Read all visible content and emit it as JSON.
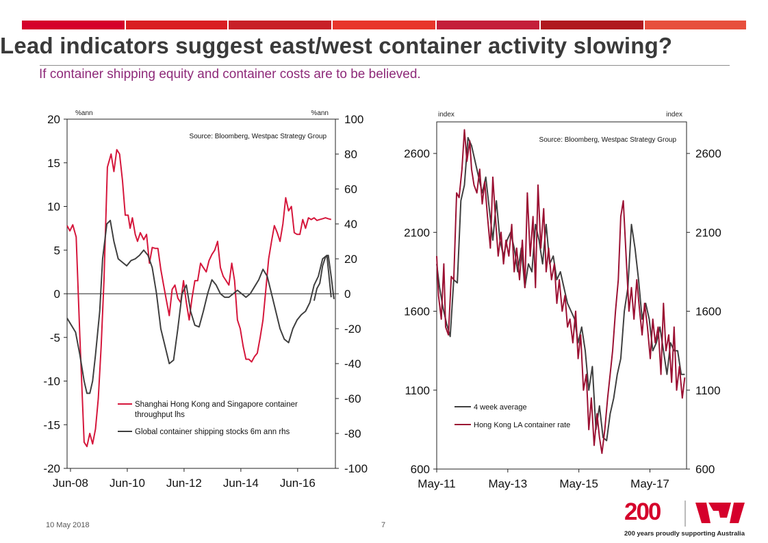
{
  "page": {
    "title": "Lead indicators suggest east/west container activity slowing?",
    "subtitle": "If container shipping equity and container costs are to be believed.",
    "footer_date": "10 May 2018",
    "footer_page": "7",
    "logo_number": "200",
    "logo_tagline": "200 years proudly supporting Australia",
    "colors": {
      "accent": "#d5002b",
      "subtitle": "#8e2a79",
      "dark_series": "#3f3f3f",
      "red_series": "#d5163b",
      "maroon_series": "#9b1133"
    },
    "topbar_colors": [
      "#d5002b",
      "#d91e22",
      "#c82027",
      "#e8352b",
      "#c41e3a",
      "#b0191e",
      "#e74f3d"
    ]
  },
  "chart_data": [
    {
      "type": "line",
      "source_note": "Source: Bloomberg, Westpac Strategy Group",
      "left_unit": "%ann",
      "right_unit": "%ann",
      "x_tick_labels": [
        "Jun-08",
        "Jun-10",
        "Jun-12",
        "Jun-14",
        "Jun-16"
      ],
      "x_tick_values": [
        2008.42,
        2010.42,
        2012.42,
        2014.42,
        2016.42
      ],
      "xlim": [
        2008.3,
        2017.75
      ],
      "ylim_left": [
        -20,
        20
      ],
      "y_ticks_left": [
        "20",
        "15",
        "10",
        "5",
        "0",
        "-5",
        "-10",
        "-15",
        "-20"
      ],
      "ylim_right": [
        -100,
        100
      ],
      "y_ticks_right": [
        "100",
        "80",
        "60",
        "40",
        "20",
        "0",
        "-20",
        "-40",
        "-60",
        "-80",
        "-100"
      ],
      "series": [
        {
          "name": "Shanghai Hong Kong and Singapore container throughput lhs",
          "name_line1": "Shanghai Hong Kong and Singapore container",
          "name_line2": "throughput lhs",
          "axis": "left",
          "color": "#d5163b",
          "x": [
            2008.3,
            2008.4,
            2008.5,
            2008.62,
            2008.75,
            2008.9,
            2009.0,
            2009.1,
            2009.2,
            2009.3,
            2009.4,
            2009.5,
            2009.6,
            2009.72,
            2009.85,
            2009.95,
            2010.05,
            2010.15,
            2010.25,
            2010.35,
            2010.45,
            2010.52,
            2010.6,
            2010.7,
            2010.78,
            2010.88,
            2011.0,
            2011.1,
            2011.2,
            2011.3,
            2011.4,
            2011.5,
            2011.6,
            2011.7,
            2011.8,
            2011.9,
            2012.0,
            2012.1,
            2012.2,
            2012.3,
            2012.4,
            2012.5,
            2012.6,
            2012.7,
            2012.8,
            2012.9,
            2013.0,
            2013.1,
            2013.2,
            2013.3,
            2013.4,
            2013.5,
            2013.6,
            2013.7,
            2013.8,
            2013.9,
            2014.0,
            2014.1,
            2014.2,
            2014.3,
            2014.4,
            2014.5,
            2014.6,
            2014.7,
            2014.8,
            2014.9,
            2015.0,
            2015.1,
            2015.2,
            2015.3,
            2015.4,
            2015.5,
            2015.6,
            2015.7,
            2015.8,
            2015.9,
            2016.0,
            2016.1,
            2016.2,
            2016.3,
            2016.4,
            2016.5,
            2016.6,
            2016.7,
            2016.8,
            2016.9,
            2017.0,
            2017.1,
            2017.2,
            2017.3,
            2017.4,
            2017.5,
            2017.6
          ],
          "values": [
            7.8,
            7.2,
            7.9,
            6.5,
            -5,
            -17,
            -17.5,
            -16,
            -17.2,
            -15.5,
            -12,
            -6,
            1.5,
            14.5,
            16,
            14,
            16.5,
            16,
            13,
            9,
            9,
            7.5,
            8.7,
            6.8,
            6,
            7,
            6.2,
            6.8,
            3.5,
            5.3,
            5.2,
            5.2,
            2.8,
            1,
            -0.8,
            -2.5,
            0.5,
            1,
            -0.5,
            -1,
            1.5,
            -1,
            -3,
            -0.5,
            1.5,
            1.5,
            3.5,
            3,
            2.5,
            3.8,
            4.5,
            5,
            6,
            3,
            2,
            1.5,
            1,
            3.5,
            1.5,
            -3,
            -4,
            -6,
            -7.5,
            -7.5,
            -7.8,
            -7.2,
            -6.8,
            -5,
            -3,
            0.5,
            4,
            6,
            7.8,
            7,
            6,
            8,
            11,
            9.5,
            10,
            7,
            6.8,
            6.8,
            8.5,
            7.5,
            8.7,
            8.5,
            8.7,
            8.4,
            8.5,
            8.6,
            8.7,
            8.6,
            8.5
          ]
        },
        {
          "name": "Global container shipping stocks 6m ann rhs",
          "axis": "right",
          "color": "#3f3f3f",
          "x": [
            2008.3,
            2008.45,
            2008.6,
            2008.75,
            2008.9,
            2009.0,
            2009.1,
            2009.2,
            2009.3,
            2009.45,
            2009.55,
            2009.7,
            2009.82,
            2009.95,
            2010.1,
            2010.25,
            2010.4,
            2010.55,
            2010.7,
            2010.85,
            2011.0,
            2011.15,
            2011.3,
            2011.45,
            2011.6,
            2011.75,
            2011.9,
            2012.05,
            2012.2,
            2012.35,
            2012.5,
            2012.65,
            2012.8,
            2012.95,
            2013.1,
            2013.25,
            2013.4,
            2013.55,
            2013.7,
            2013.85,
            2014.0,
            2014.15,
            2014.3,
            2014.45,
            2014.6,
            2014.75,
            2014.9,
            2015.05,
            2015.2,
            2015.35,
            2015.5,
            2015.65,
            2015.8,
            2015.95,
            2016.1,
            2016.25,
            2016.4,
            2016.55,
            2016.7,
            2016.85,
            2017.0,
            2017.15,
            2017.3,
            2017.45,
            2017.6
          ],
          "values": [
            -14,
            -18,
            -22,
            -35,
            -50,
            -57,
            -57,
            -50,
            -35,
            -10,
            20,
            40,
            42,
            30,
            20,
            18,
            16,
            19,
            20,
            22,
            25,
            22,
            15,
            0,
            -20,
            -30,
            -40,
            -38,
            -20,
            0,
            5,
            -10,
            -18,
            -19,
            -10,
            0,
            8,
            5,
            0,
            -2,
            -2,
            0,
            2,
            0,
            -2,
            0,
            4,
            8,
            14,
            10,
            0,
            -10,
            -20,
            -26,
            -28,
            -20,
            -15,
            -12,
            -10,
            -5,
            5,
            10,
            20,
            22,
            -2
          ]
        },
        {
          "name": "Global container shipping stocks 6m ann rhs (late)",
          "axis": "right",
          "color": "#3f3f3f",
          "x": [
            2017.0,
            2017.1,
            2017.2,
            2017.3,
            2017.4,
            2017.5,
            2017.6,
            2017.7
          ],
          "values": [
            -4,
            3,
            6,
            16,
            21,
            22,
            10,
            -3
          ]
        }
      ]
    },
    {
      "type": "line",
      "source_note": "Source: Bloomberg, Westpac Strategy Group",
      "left_unit": "index",
      "right_unit": "index",
      "x_tick_labels": [
        "May-11",
        "May-13",
        "May-15",
        "May-17"
      ],
      "x_tick_values": [
        2011.37,
        2013.37,
        2015.37,
        2017.37
      ],
      "xlim": [
        2011.37,
        2018.4
      ],
      "ylim_left": [
        600,
        2800
      ],
      "y_ticks_left": [
        "2600",
        "2100",
        "1600",
        "1100",
        "600"
      ],
      "ylim_right": [
        600,
        2800
      ],
      "y_ticks_right": [
        "2600",
        "2100",
        "1600",
        "1100",
        "600"
      ],
      "series": [
        {
          "name": "4 week average",
          "axis": "left",
          "color": "#3f3f3f",
          "x": [
            2011.37,
            2011.45,
            2011.55,
            2011.65,
            2011.75,
            2011.85,
            2011.95,
            2012.05,
            2012.15,
            2012.25,
            2012.35,
            2012.45,
            2012.55,
            2012.65,
            2012.75,
            2012.85,
            2012.95,
            2013.05,
            2013.15,
            2013.25,
            2013.35,
            2013.45,
            2013.55,
            2013.65,
            2013.75,
            2013.85,
            2013.95,
            2014.05,
            2014.15,
            2014.25,
            2014.35,
            2014.45,
            2014.55,
            2014.65,
            2014.75,
            2014.85,
            2014.95,
            2015.05,
            2015.15,
            2015.25,
            2015.35,
            2015.45,
            2015.55,
            2015.65,
            2015.75,
            2015.85,
            2015.95,
            2016.05,
            2016.15,
            2016.25,
            2016.35,
            2016.45,
            2016.55,
            2016.65,
            2016.75,
            2016.85,
            2016.95,
            2017.05,
            2017.15,
            2017.25,
            2017.35,
            2017.45,
            2017.55,
            2017.65,
            2017.75,
            2017.85,
            2017.95,
            2018.05,
            2018.15,
            2018.25,
            2018.35
          ],
          "values": [
            1900,
            1750,
            1620,
            1520,
            1440,
            1800,
            1780,
            2300,
            2400,
            2700,
            2650,
            2550,
            2450,
            2350,
            2450,
            2250,
            2050,
            2300,
            2050,
            1950,
            2050,
            2100,
            2000,
            1850,
            2000,
            1750,
            1900,
            1850,
            2150,
            2050,
            1900,
            2150,
            1900,
            1950,
            1800,
            1850,
            1750,
            1650,
            1600,
            1550,
            1400,
            1500,
            1350,
            1100,
            1250,
            850,
            1000,
            800,
            780,
            950,
            1050,
            1200,
            1300,
            1600,
            1750,
            2150,
            2000,
            1800,
            1550,
            1650,
            1550,
            1350,
            1400,
            1500,
            1350,
            1200,
            1400,
            1350,
            1350,
            1200,
            1200
          ]
        },
        {
          "name": "Hong Kong LA container rate",
          "axis": "left",
          "color": "#9b1133",
          "x": [
            2011.37,
            2011.42,
            2011.5,
            2011.57,
            2011.62,
            2011.7,
            2011.78,
            2011.85,
            2011.93,
            2012.0,
            2012.08,
            2012.15,
            2012.22,
            2012.3,
            2012.35,
            2012.42,
            2012.5,
            2012.58,
            2012.65,
            2012.72,
            2012.8,
            2012.88,
            2012.95,
            2013.02,
            2013.1,
            2013.18,
            2013.25,
            2013.32,
            2013.4,
            2013.48,
            2013.55,
            2013.62,
            2013.7,
            2013.78,
            2013.85,
            2013.92,
            2014.0,
            2014.08,
            2014.15,
            2014.22,
            2014.3,
            2014.38,
            2014.45,
            2014.52,
            2014.6,
            2014.68,
            2014.75,
            2014.82,
            2014.9,
            2014.98,
            2015.05,
            2015.12,
            2015.2,
            2015.28,
            2015.35,
            2015.42,
            2015.5,
            2015.58,
            2015.65,
            2015.72,
            2015.8,
            2015.88,
            2015.95,
            2016.02,
            2016.1,
            2016.18,
            2016.25,
            2016.32,
            2016.4,
            2016.48,
            2016.55,
            2016.62,
            2016.7,
            2016.78,
            2016.85,
            2016.92,
            2017.0,
            2017.08,
            2017.15,
            2017.22,
            2017.3,
            2017.38,
            2017.45,
            2017.52,
            2017.6,
            2017.68,
            2017.75,
            2017.82,
            2017.9,
            2017.98,
            2018.05,
            2018.12,
            2018.2,
            2018.28,
            2018.35
          ],
          "values": [
            1950,
            1700,
            1550,
            1900,
            1500,
            1450,
            1820,
            1800,
            2350,
            2320,
            2500,
            2750,
            2550,
            2680,
            2500,
            2400,
            2350,
            2500,
            2280,
            2420,
            2200,
            2000,
            2450,
            2200,
            1950,
            2100,
            1900,
            2050,
            1950,
            2150,
            1850,
            2000,
            1800,
            2050,
            1750,
            2350,
            1950,
            2200,
            1750,
            2400,
            2000,
            2250,
            1850,
            2000,
            1800,
            1900,
            1650,
            1800,
            1600,
            1700,
            1500,
            1550,
            1400,
            1600,
            1300,
            1450,
            1100,
            1200,
            850,
            1050,
            750,
            950,
            800,
            700,
            850,
            1050,
            1200,
            1350,
            1600,
            1800,
            2200,
            2300,
            1950,
            1600,
            1750,
            1550,
            1800,
            1600,
            1450,
            1650,
            1500,
            1300,
            1550,
            1400,
            1500,
            1200,
            1650,
            1350,
            1450,
            1150,
            1500,
            1100,
            1250,
            1050,
            1180
          ]
        }
      ]
    }
  ]
}
